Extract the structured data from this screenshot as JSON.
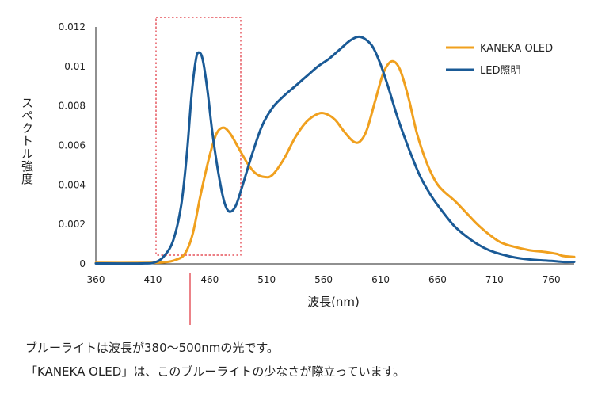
{
  "chart_data": {
    "type": "line",
    "xlabel": "波長(nm)",
    "ylabel": "スペクトル強度",
    "x_ticks": [
      "360",
      "410",
      "460",
      "510",
      "560",
      "610",
      "660",
      "710",
      "760"
    ],
    "y_ticks": [
      "0",
      "0.002",
      "0.004",
      "0.006",
      "0.008",
      "0.01",
      "0.012"
    ],
    "xlim": [
      360,
      780
    ],
    "ylim": [
      0,
      0.012
    ],
    "grid": false,
    "legend_position": "top-right",
    "highlight_range": {
      "x_start": 412,
      "x_end": 488,
      "y_top": 0.0125,
      "y_bottom": 0.0005
    },
    "highlight_marker_x": 438,
    "series": [
      {
        "name": "KANEKA OLED",
        "color": "#F0A01E",
        "points": [
          [
            360,
            5e-05
          ],
          [
            400,
            5e-05
          ],
          [
            420,
            8e-05
          ],
          [
            430,
            0.0002
          ],
          [
            438,
            0.0005
          ],
          [
            445,
            0.0015
          ],
          [
            452,
            0.0035
          ],
          [
            460,
            0.0055
          ],
          [
            466,
            0.0066
          ],
          [
            472,
            0.0069
          ],
          [
            478,
            0.0066
          ],
          [
            485,
            0.0059
          ],
          [
            493,
            0.0051
          ],
          [
            500,
            0.0046
          ],
          [
            508,
            0.0044
          ],
          [
            515,
            0.0045
          ],
          [
            525,
            0.0053
          ],
          [
            535,
            0.0064
          ],
          [
            545,
            0.0072
          ],
          [
            555,
            0.0076
          ],
          [
            562,
            0.0076
          ],
          [
            570,
            0.0073
          ],
          [
            578,
            0.0067
          ],
          [
            586,
            0.0062
          ],
          [
            592,
            0.0062
          ],
          [
            598,
            0.0068
          ],
          [
            605,
            0.0082
          ],
          [
            612,
            0.0096
          ],
          [
            618,
            0.0102
          ],
          [
            623,
            0.0102
          ],
          [
            628,
            0.0097
          ],
          [
            635,
            0.0083
          ],
          [
            642,
            0.0066
          ],
          [
            650,
            0.0052
          ],
          [
            658,
            0.0042
          ],
          [
            665,
            0.0037
          ],
          [
            675,
            0.0032
          ],
          [
            685,
            0.0026
          ],
          [
            695,
            0.002
          ],
          [
            705,
            0.0015
          ],
          [
            715,
            0.0011
          ],
          [
            725,
            0.0009
          ],
          [
            740,
            0.0007
          ],
          [
            755,
            0.0006
          ],
          [
            765,
            0.0005
          ],
          [
            770,
            0.0004
          ],
          [
            780,
            0.00035
          ]
        ]
      },
      {
        "name": "LED照明",
        "color": "#1A5A96",
        "points": [
          [
            360,
            2e-05
          ],
          [
            400,
            2e-05
          ],
          [
            412,
            8e-05
          ],
          [
            420,
            0.0004
          ],
          [
            428,
            0.0012
          ],
          [
            435,
            0.003
          ],
          [
            440,
            0.0056
          ],
          [
            444,
            0.0085
          ],
          [
            448,
            0.0104
          ],
          [
            451,
            0.0107
          ],
          [
            454,
            0.0103
          ],
          [
            458,
            0.0088
          ],
          [
            462,
            0.0068
          ],
          [
            467,
            0.0048
          ],
          [
            472,
            0.0033
          ],
          [
            476,
            0.0027
          ],
          [
            480,
            0.0027
          ],
          [
            484,
            0.0031
          ],
          [
            490,
            0.0042
          ],
          [
            498,
            0.0057
          ],
          [
            506,
            0.007
          ],
          [
            515,
            0.0079
          ],
          [
            525,
            0.0085
          ],
          [
            535,
            0.009
          ],
          [
            545,
            0.0095
          ],
          [
            555,
            0.01
          ],
          [
            565,
            0.0104
          ],
          [
            575,
            0.0109
          ],
          [
            583,
            0.0113
          ],
          [
            590,
            0.0115
          ],
          [
            596,
            0.0114
          ],
          [
            603,
            0.011
          ],
          [
            610,
            0.0101
          ],
          [
            617,
            0.0089
          ],
          [
            625,
            0.0074
          ],
          [
            635,
            0.0058
          ],
          [
            645,
            0.0044
          ],
          [
            655,
            0.0034
          ],
          [
            665,
            0.0026
          ],
          [
            675,
            0.0019
          ],
          [
            685,
            0.0014
          ],
          [
            695,
            0.001
          ],
          [
            705,
            0.0007
          ],
          [
            715,
            0.0005
          ],
          [
            730,
            0.0003
          ],
          [
            745,
            0.0002
          ],
          [
            760,
            0.00015
          ],
          [
            770,
            0.0001
          ],
          [
            780,
            0.0001
          ]
        ]
      }
    ]
  },
  "captions": {
    "line1": "ブルーライトは波長が380〜500nmの光です。",
    "line2": "「KANEKA OLED」は、このブルーライトの少なさが際立っています。"
  }
}
